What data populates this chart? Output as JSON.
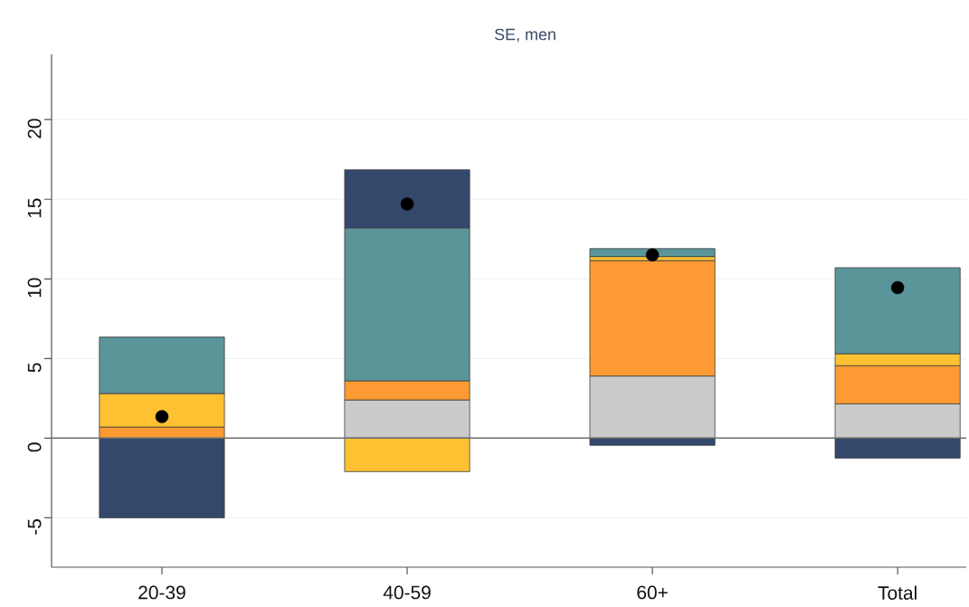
{
  "chart_data": {
    "type": "bar",
    "title": "SE, men",
    "categories": [
      "20-39",
      "40-59",
      "60+",
      "Total"
    ],
    "stacked": true,
    "series": [
      {
        "color": "#cbcbcb",
        "values": [
          null,
          2.4,
          3.9,
          2.15
        ]
      },
      {
        "color": "#fe9a33",
        "values": [
          0.7,
          1.2,
          7.25,
          2.4
        ]
      },
      {
        "color": "#fec132",
        "values": [
          2.1,
          -2.1,
          0.25,
          0.75
        ]
      },
      {
        "color": "#5a959a",
        "values": [
          3.55,
          9.6,
          0.5,
          5.4
        ]
      },
      {
        "color": "#33486b",
        "values": [
          -5.0,
          3.65,
          -0.45,
          -1.25
        ]
      },
      {
        "type": "scatter",
        "x": [
          "20-39",
          "40-59",
          "60+",
          "Total"
        ],
        "values": [
          1.35,
          14.7,
          11.5,
          9.45
        ],
        "color": "#000000",
        "marker": "circle"
      }
    ],
    "ylim": [
      -8.1,
      24.1
    ],
    "yticks": [
      -5,
      0,
      5,
      10,
      15,
      20
    ],
    "grid": "y",
    "ref_lines": [
      {
        "axis": "y",
        "value": 0,
        "color": "#6e6e6e"
      }
    ]
  }
}
